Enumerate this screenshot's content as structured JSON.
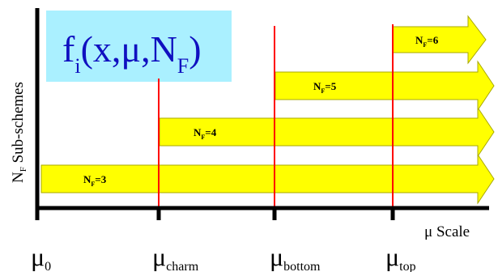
{
  "formula": {
    "f": "f",
    "f_sub": "i",
    "args_open": "(x,",
    "mu": "μ",
    "comma": ",N",
    "nf_sub": "F",
    "close": ")"
  },
  "y_axis": {
    "prefix": "N",
    "prefix_sub": "F",
    "rest": " Sub-schemes"
  },
  "x_axis": {
    "mu": "μ",
    "label": " Scale"
  },
  "thresholds": [
    {
      "mu": "μ",
      "sub": "0"
    },
    {
      "mu": "μ",
      "sub": "charm"
    },
    {
      "mu": "μ",
      "sub": "bottom"
    },
    {
      "mu": "μ",
      "sub": "top"
    }
  ],
  "arrows": [
    {
      "n": "N",
      "sub": "F",
      "value": "=3"
    },
    {
      "n": "N",
      "sub": "F",
      "value": "=4"
    },
    {
      "n": "N",
      "sub": "F",
      "value": "=5"
    },
    {
      "n": "N",
      "sub": "F",
      "value": "=6"
    }
  ],
  "colors": {
    "arrow_fill": "#ffff00",
    "arrow_stroke": "#a8a800",
    "threshold_line": "#ff0000",
    "formula_box": "#aaf0ff",
    "axis": "#000000"
  }
}
